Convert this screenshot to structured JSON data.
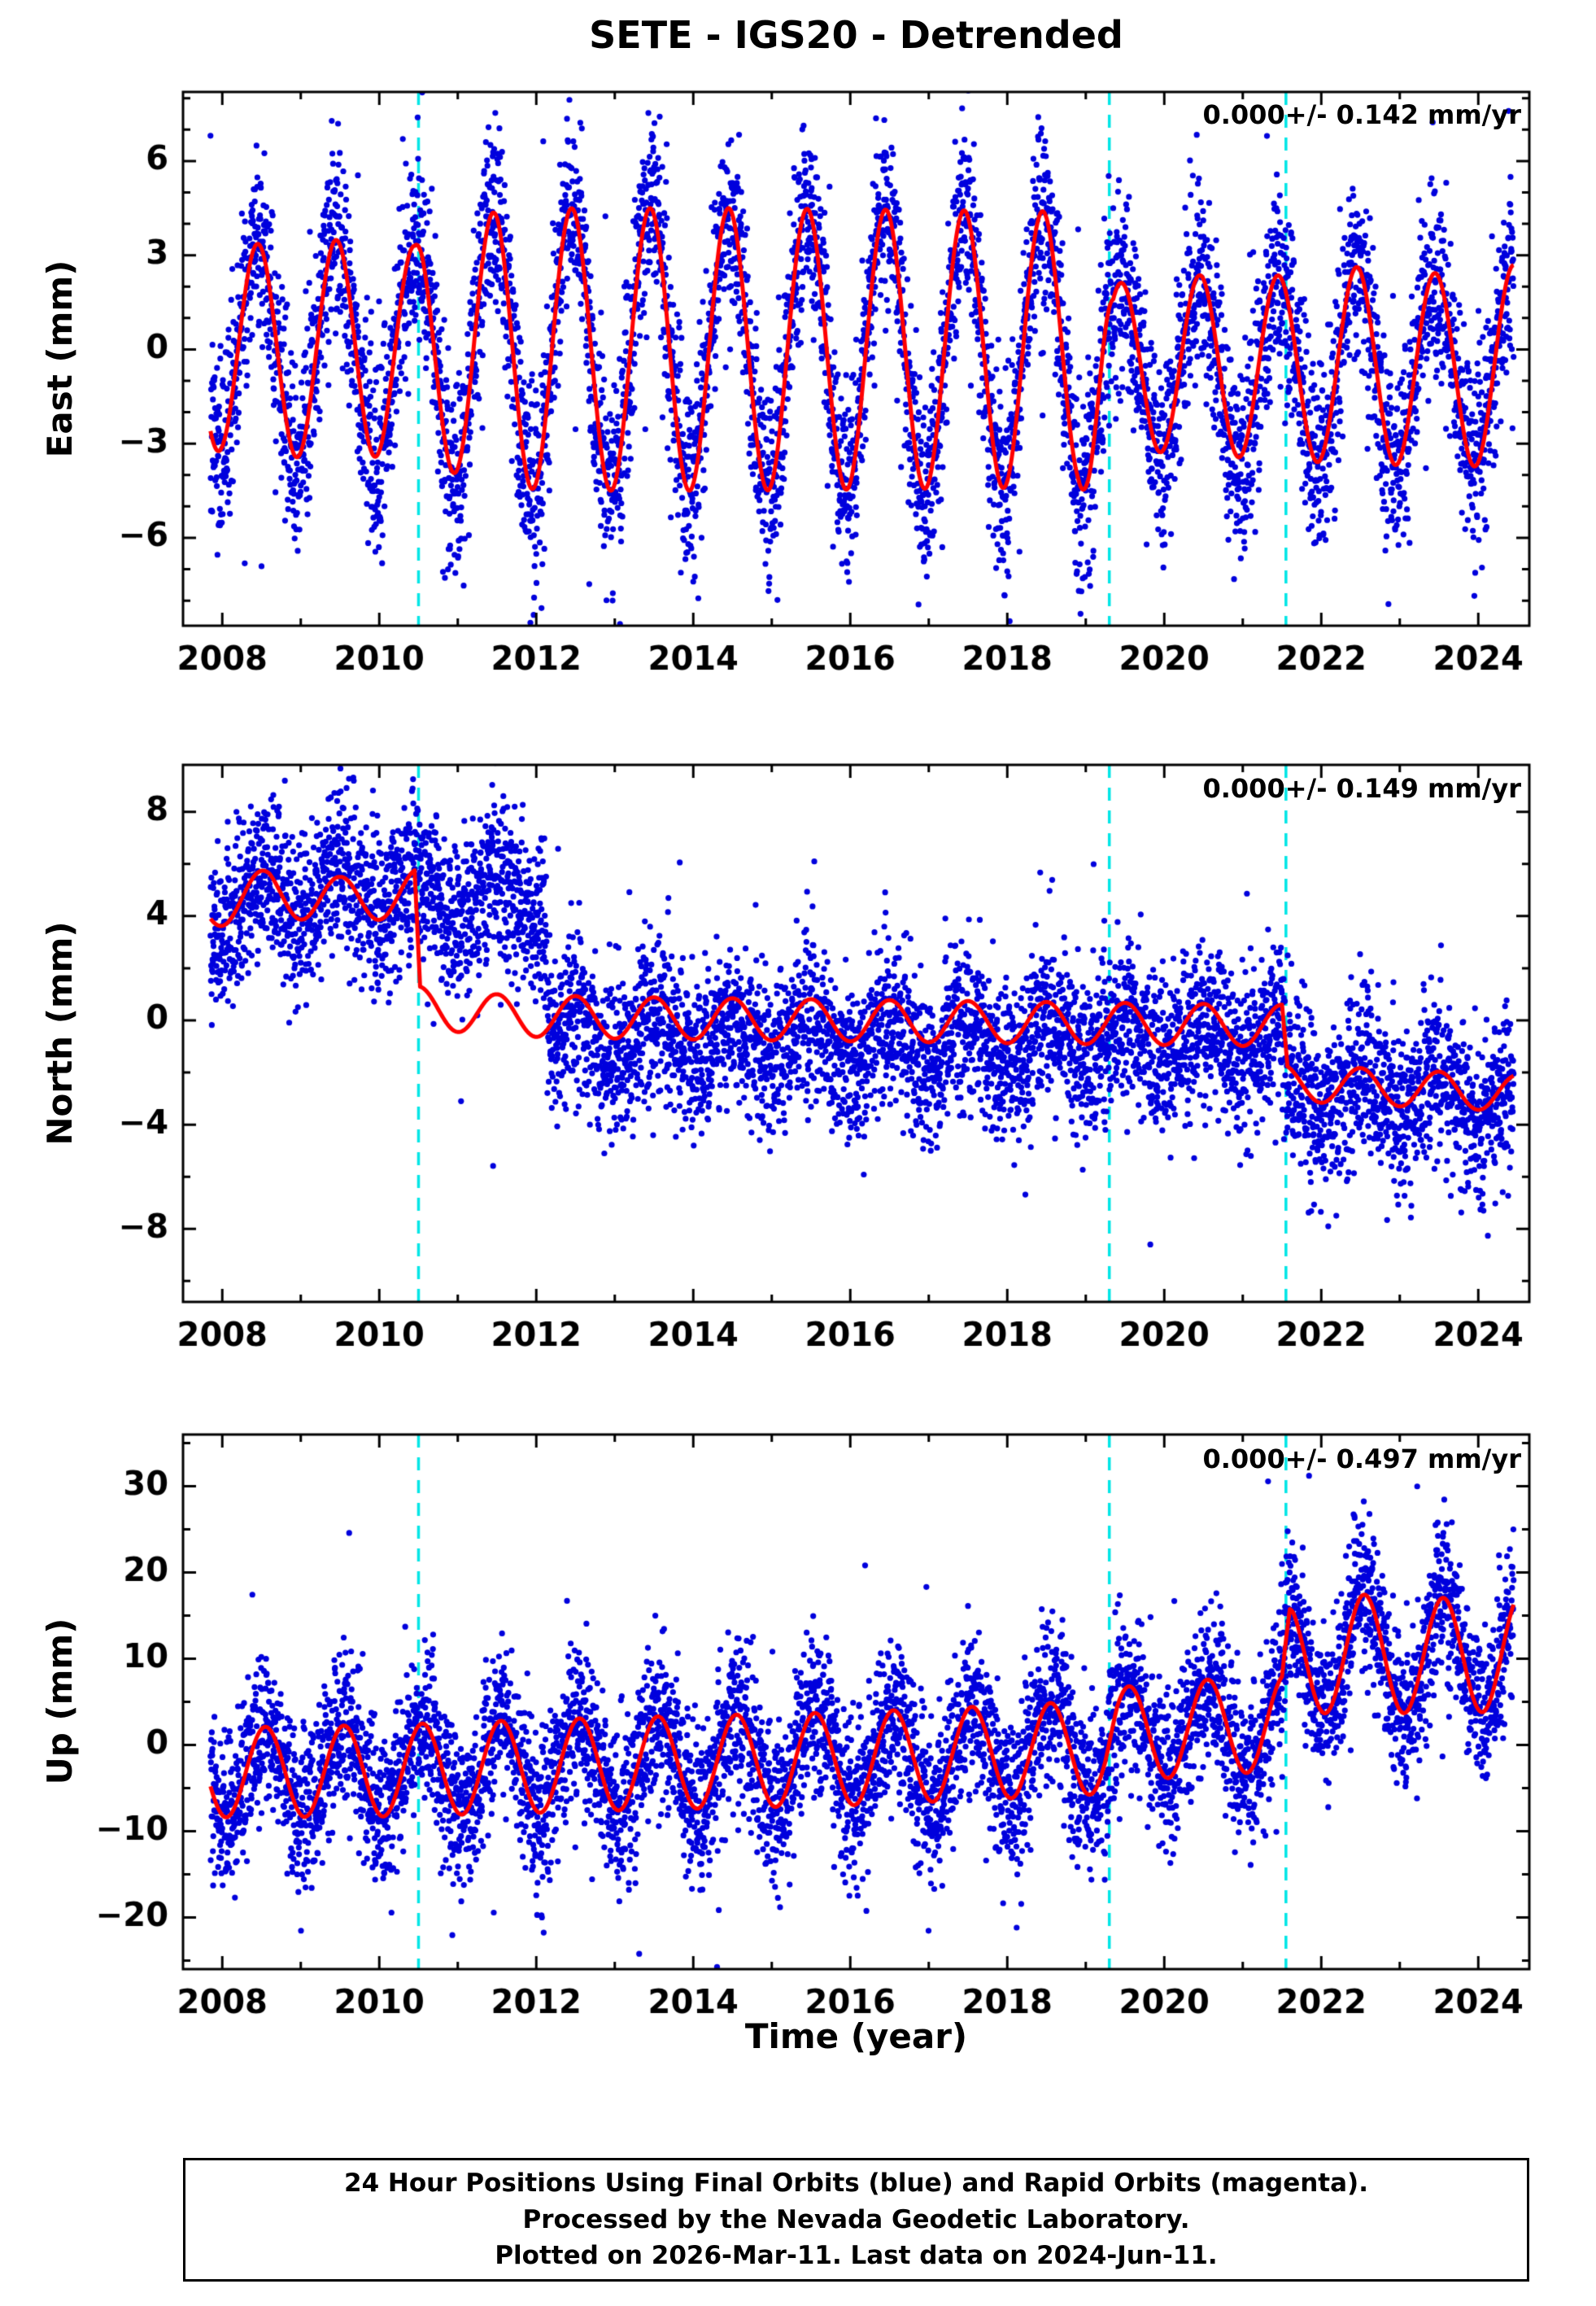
{
  "chart_data": {
    "type": "scatter",
    "title": "SETE - IGS20 - Detrended",
    "xlabel": "Time (year)",
    "legend_note": "24 hour GPS position time series, blue points with red seasonal model, cyan dashed event lines",
    "colors": {
      "points": "#0000dd",
      "model": "#ff0000",
      "event_line": "#00e6e6",
      "frame": "#000000",
      "background": "#ffffff"
    },
    "x_axis": {
      "min": 2007.5,
      "max": 2024.65,
      "major_ticks": [
        2008,
        2010,
        2012,
        2014,
        2016,
        2018,
        2020,
        2022,
        2024
      ],
      "minor_step": 1
    },
    "event_lines_x": [
      2010.5,
      2019.3,
      2021.55
    ],
    "panels": [
      {
        "name": "east",
        "ylabel": "East (mm)",
        "annotation": "0.000+/- 0.142 mm/yr",
        "ylim": [
          -8.8,
          8.2
        ],
        "major_ticks": [
          -6,
          -3,
          0,
          3,
          6
        ],
        "minor_step": 1,
        "model": {
          "peak": 0.45,
          "mean_keys": [
            [
              2007.8,
              0
            ],
            [
              2018.9,
              0
            ],
            [
              2019.05,
              -0.5
            ],
            [
              2024.5,
              -0.6
            ]
          ],
          "amp_keys": [
            [
              2007.8,
              3.2
            ],
            [
              2008.6,
              3.4
            ],
            [
              2009.6,
              3.5
            ],
            [
              2010.45,
              3.3
            ],
            [
              2010.55,
              3.6
            ],
            [
              2011.5,
              4.4
            ],
            [
              2012.5,
              4.5
            ],
            [
              2014.5,
              4.5
            ],
            [
              2018.5,
              4.4
            ],
            [
              2019.2,
              4.2
            ],
            [
              2019.35,
              2.6
            ],
            [
              2020.5,
              2.9
            ],
            [
              2021.5,
              2.9
            ],
            [
              2022.5,
              3.2
            ],
            [
              2023.5,
              3.0
            ],
            [
              2024.5,
              3.3
            ]
          ]
        },
        "scatter": {
          "seed": 7,
          "start": 2007.85,
          "end": 2024.45,
          "per_year": 360,
          "sigma": 1.55,
          "outlier_frac": 0.012,
          "outlier_scale": 2.6,
          "peak": 0.45,
          "mean_keys": [
            [
              2007.8,
              0
            ],
            [
              2018.9,
              0
            ],
            [
              2019.05,
              -0.5
            ],
            [
              2024.5,
              -0.6
            ]
          ],
          "amp_keys": [
            [
              2007.8,
              3.2
            ],
            [
              2008.6,
              3.4
            ],
            [
              2009.6,
              3.5
            ],
            [
              2010.45,
              3.3
            ],
            [
              2010.55,
              3.6
            ],
            [
              2011.5,
              4.4
            ],
            [
              2012.5,
              4.5
            ],
            [
              2014.5,
              4.5
            ],
            [
              2018.5,
              4.4
            ],
            [
              2019.2,
              4.2
            ],
            [
              2019.35,
              2.6
            ],
            [
              2020.5,
              2.9
            ],
            [
              2021.5,
              2.9
            ],
            [
              2022.5,
              3.2
            ],
            [
              2023.5,
              3.0
            ],
            [
              2024.5,
              3.3
            ]
          ]
        }
      },
      {
        "name": "north",
        "ylabel": "North (mm)",
        "annotation": "0.000+/- 0.149 mm/yr",
        "ylim": [
          -10.8,
          9.8
        ],
        "major_ticks": [
          -8,
          -4,
          0,
          4,
          8
        ],
        "minor_step": 2,
        "model": {
          "peak": 0.5,
          "mean_keys": [
            [
              2007.8,
              4.4
            ],
            [
              2008.6,
              4.9
            ],
            [
              2009.5,
              4.6
            ],
            [
              2010.45,
              4.9
            ],
            [
              2010.52,
              0.5
            ],
            [
              2011.5,
              0.2
            ],
            [
              2013,
              0.1
            ],
            [
              2021.5,
              -0.2
            ],
            [
              2021.57,
              -2.4
            ],
            [
              2023,
              -2.6
            ],
            [
              2024.5,
              -2.8
            ]
          ],
          "amp_keys": [
            [
              2007.8,
              0.9
            ],
            [
              2010.45,
              0.9
            ],
            [
              2010.52,
              0.8
            ],
            [
              2021.5,
              0.8
            ],
            [
              2021.57,
              0.7
            ],
            [
              2024.5,
              0.7
            ]
          ]
        },
        "scatter": {
          "seed": 21,
          "start": 2007.85,
          "end": 2024.45,
          "per_year": 360,
          "sigma": 1.55,
          "outlier_frac": 0.012,
          "outlier_scale": 2.6,
          "peak": 0.5,
          "mean_keys": [
            [
              2007.8,
              4.2
            ],
            [
              2008.6,
              4.9
            ],
            [
              2010.4,
              4.9
            ],
            [
              2010.55,
              4.7
            ],
            [
              2012.1,
              4.8
            ],
            [
              2012.18,
              -0.5
            ],
            [
              2014,
              -0.8
            ],
            [
              2021.5,
              -0.9
            ],
            [
              2021.57,
              -2.6
            ],
            [
              2024.5,
              -3.0
            ]
          ],
          "amp_keys": [
            [
              2007.8,
              1.0
            ],
            [
              2012.1,
              1.0
            ],
            [
              2012.2,
              0.8
            ],
            [
              2024.5,
              0.8
            ]
          ]
        }
      },
      {
        "name": "up",
        "ylabel": "Up (mm)",
        "annotation": "0.000+/- 0.497 mm/yr",
        "ylim": [
          -26,
          36
        ],
        "major_ticks": [
          -20,
          -10,
          0,
          10,
          20,
          30
        ],
        "minor_step": 5,
        "model": {
          "peak": 0.55,
          "mean_keys": [
            [
              2007.8,
              -3.2
            ],
            [
              2010,
              -3.0
            ],
            [
              2013,
              -2.2
            ],
            [
              2016,
              -1.6
            ],
            [
              2018.5,
              -0.6
            ],
            [
              2019.25,
              -0.2
            ],
            [
              2019.4,
              1.2
            ],
            [
              2020.5,
              2.0
            ],
            [
              2021.5,
              2.6
            ],
            [
              2021.6,
              9.8
            ],
            [
              2022.5,
              10.8
            ],
            [
              2023.3,
              10.2
            ],
            [
              2024.5,
              10.8
            ]
          ],
          "amp_keys": [
            [
              2007.8,
              5.2
            ],
            [
              2012,
              5.4
            ],
            [
              2018,
              5.4
            ],
            [
              2021.5,
              5.6
            ],
            [
              2021.65,
              6.6
            ],
            [
              2024.5,
              6.8
            ]
          ]
        },
        "scatter": {
          "seed": 42,
          "start": 2007.85,
          "end": 2024.45,
          "per_year": 360,
          "sigma": 4.6,
          "outlier_frac": 0.015,
          "outlier_scale": 2.3,
          "peak": 0.55,
          "mean_keys": [
            [
              2007.8,
              -3.2
            ],
            [
              2010,
              -3.0
            ],
            [
              2013,
              -2.2
            ],
            [
              2016,
              -1.6
            ],
            [
              2018.5,
              -0.6
            ],
            [
              2019.25,
              -0.2
            ],
            [
              2019.4,
              1.2
            ],
            [
              2020.5,
              2.0
            ],
            [
              2021.5,
              2.6
            ],
            [
              2021.6,
              9.8
            ],
            [
              2022.5,
              10.8
            ],
            [
              2023.3,
              10.2
            ],
            [
              2024.5,
              10.8
            ]
          ],
          "amp_keys": [
            [
              2007.8,
              5.2
            ],
            [
              2012,
              5.4
            ],
            [
              2018,
              5.4
            ],
            [
              2021.5,
              5.6
            ],
            [
              2021.65,
              6.6
            ],
            [
              2024.5,
              6.8
            ]
          ]
        }
      }
    ]
  },
  "footer": {
    "line1": "24 Hour Positions Using Final Orbits (blue) and Rapid Orbits (magenta).",
    "line2": "Processed by the Nevada Geodetic Laboratory.",
    "line3": "Plotted on 2026-Mar-11. Last data on 2024-Jun-11."
  }
}
